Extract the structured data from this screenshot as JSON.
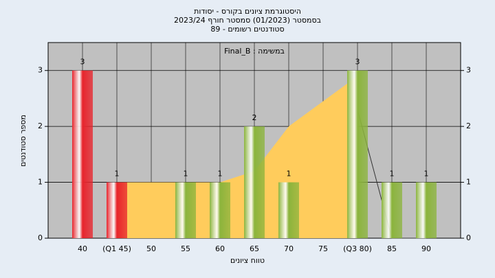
{
  "chart_data": {
    "type": "bar",
    "title": [
      "היסטוגרמת ציונים בקורס - יסודות",
      "בסמסטר  (01/2023)  סמסטר חורף  2023/24",
      "סטודנטים רשומים - 89"
    ],
    "annotation": "במשימה : Final_B",
    "xlabel": "טווח ציונים",
    "ylabel": "מספר סטודנטים",
    "categories": [
      "40",
      "(Q1 45)",
      "50",
      "55",
      "60",
      "65",
      "70",
      "75",
      "(Q3 80)",
      "85",
      "90"
    ],
    "values": [
      3,
      1,
      0,
      1,
      1,
      2,
      1,
      0,
      3,
      1,
      1
    ],
    "colors": [
      "#e8242c",
      "#e8242c",
      "#8bb43c",
      "#8bb43c",
      "#8bb43c",
      "#8bb43c",
      "#8bb43c",
      "#8bb43c",
      "#8bb43c",
      "#8bb43c",
      "#8bb43c"
    ],
    "area": {
      "color": "#ffcc5c",
      "values": [
        null,
        1,
        1,
        1,
        1,
        1.2,
        2,
        2.45,
        2.9,
        null,
        null
      ]
    },
    "line": {
      "color": "#333333",
      "values": [
        null,
        null,
        null,
        null,
        null,
        null,
        null,
        null,
        2.3,
        0,
        0
      ]
    },
    "ylim": [
      0,
      3.5
    ],
    "yticks": [
      0,
      1,
      2,
      3
    ],
    "grid": true,
    "plot_background": "#c0c0c0"
  }
}
